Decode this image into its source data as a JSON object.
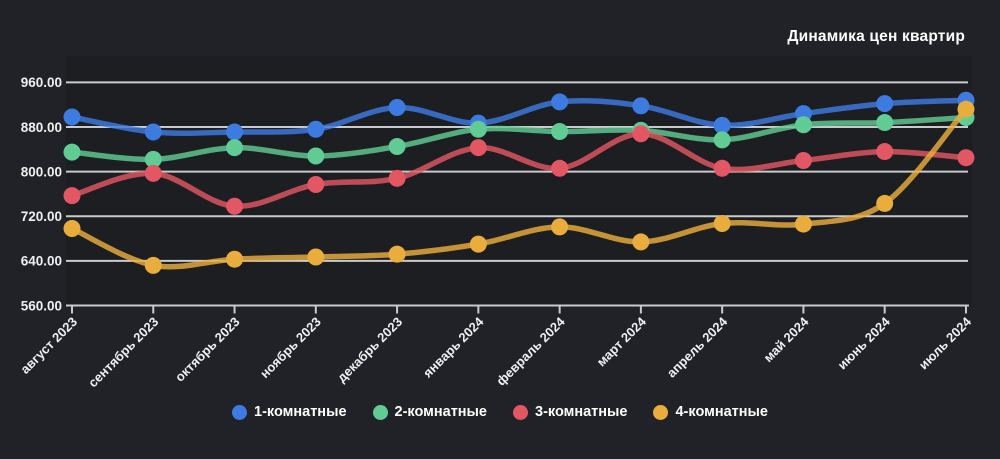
{
  "header": {
    "title": "Динамика цен квартир"
  },
  "colors": {
    "background": "#212227",
    "plot_background": "#1d1e22",
    "grid": "#c9cacc",
    "text": "#f0f0f1"
  },
  "chart_data": {
    "type": "line",
    "title": "Динамика цен квартир",
    "x_categories": [
      "август 2023",
      "сентябрь 2023",
      "октябрь 2023",
      "ноябрь 2023",
      "декабрь 2023",
      "январь 2024",
      "февраль 2024",
      "март 2024",
      "апрель 2024",
      "май 2024",
      "июнь 2024",
      "июль 2024"
    ],
    "series": [
      {
        "name": "1-комнатные",
        "slug": "1-room",
        "color": "#3d7be1",
        "values": [
          898,
          871,
          871,
          876,
          915,
          887,
          925,
          918,
          883,
          904,
          922,
          928
        ]
      },
      {
        "name": "2-комнатные",
        "slug": "2-room",
        "color": "#60cb93",
        "values": [
          835,
          822,
          843,
          828,
          845,
          876,
          872,
          874,
          857,
          884,
          888,
          897
        ]
      },
      {
        "name": "3-комнатные",
        "slug": "3-room",
        "color": "#e25763",
        "values": [
          757,
          797,
          738,
          777,
          788,
          843,
          806,
          868,
          806,
          820,
          836,
          825
        ]
      },
      {
        "name": "4-комнатные",
        "slug": "4-room",
        "color": "#e9ad3d",
        "values": [
          698,
          632,
          643,
          647,
          652,
          670,
          701,
          674,
          707,
          706,
          743,
          912
        ]
      }
    ],
    "ylim": [
      560,
      960
    ],
    "ytick_step": 80,
    "ytick_labels": [
      "560.00",
      "640.00",
      "720.00",
      "800.00",
      "880.00",
      "960.00"
    ],
    "grid": "horizontal",
    "legend_position": "bottom",
    "line_smoothing": true
  }
}
